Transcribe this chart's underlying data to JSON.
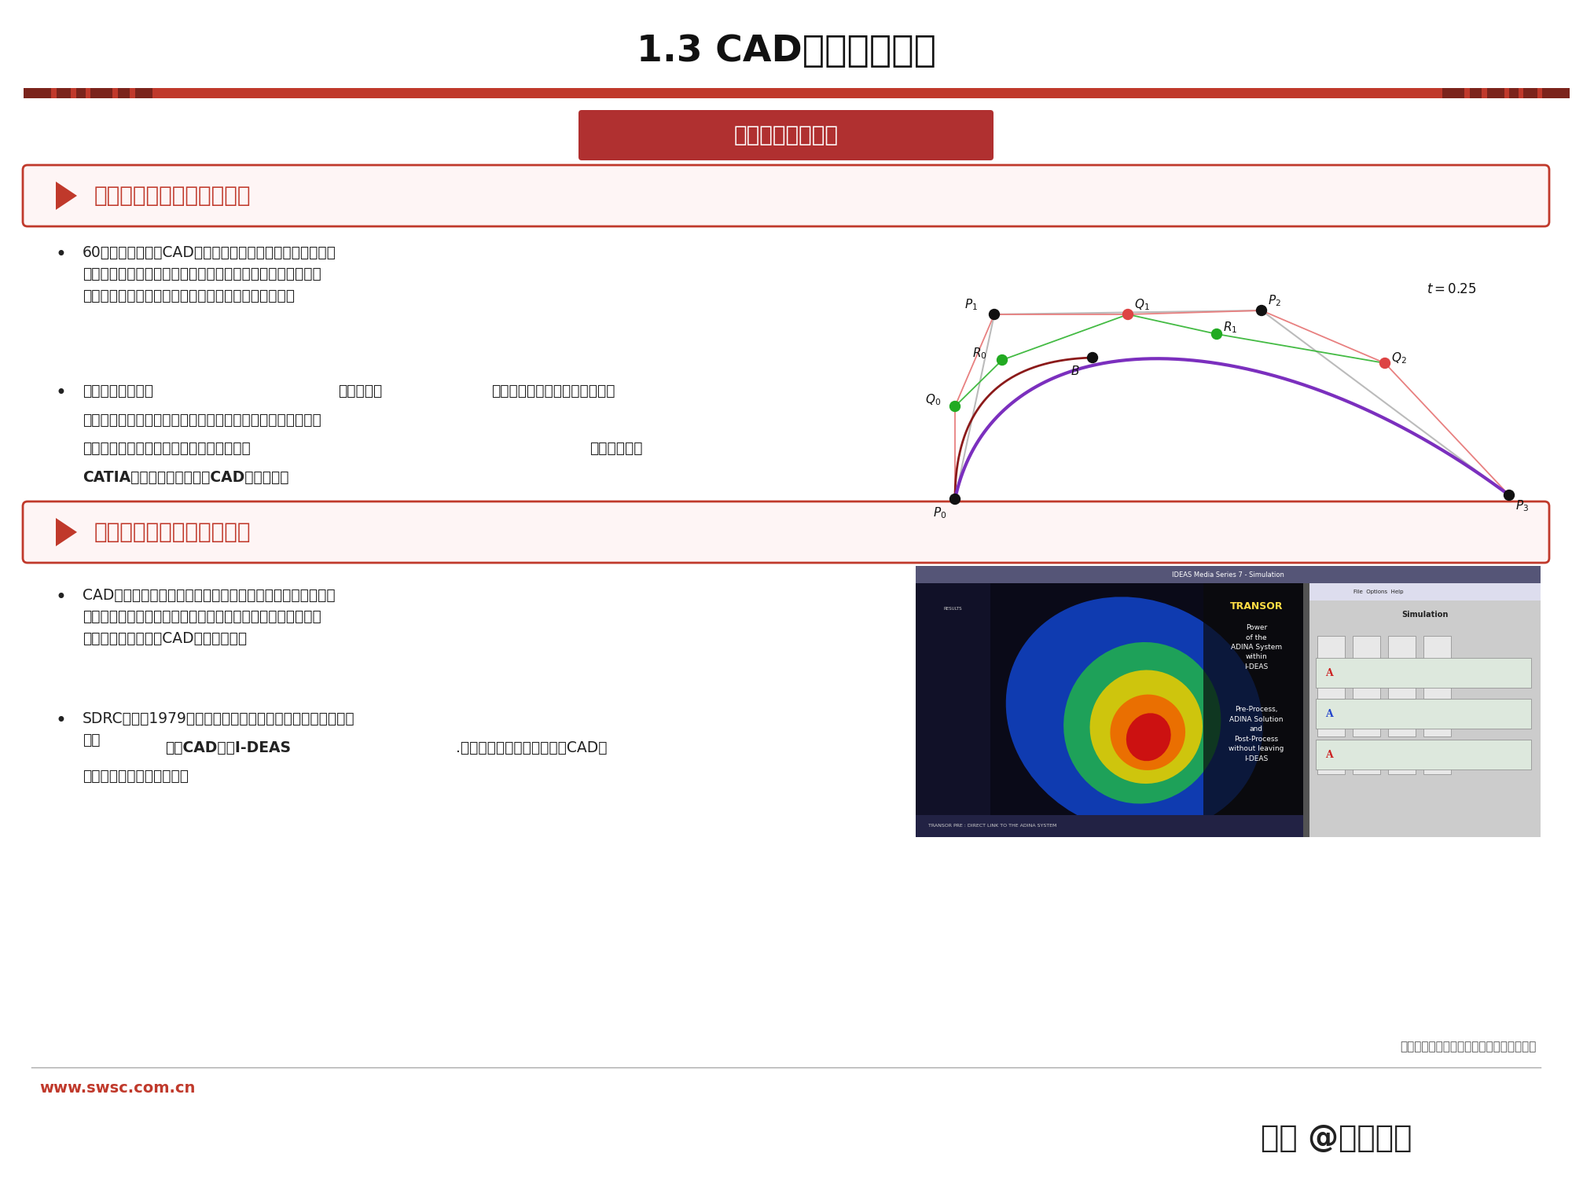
{
  "title": "1.3 CAD技术发展历程",
  "title_fontsize": 34,
  "bg_color": "#ffffff",
  "header_bar_color": "#c0392b",
  "header_bar_color2": "#7b241c",
  "center_label": "四大重大技术革命",
  "center_label_color": "#ffffff",
  "center_label_bg": "#b03030",
  "section1_title": "第一次技术革命：曲面造型",
  "section1_title_color": "#c0392b",
  "section1_border_color": "#c0392b",
  "section2_title": "第二次技术革命：实体造型",
  "section2_title_color": "#c0392b",
  "section2_border_color": "#c0392b",
  "s1_b1_normal": "60年代出现的三维CAD系统只是极为简单的线框式系统，只\n能表达基本的几何信息，经常发生设计完成后，制作出来的样\n品与设计者所想象的有很大差距甚至完全不同的情况。",
  "s1_b2_normal": "这时候法国人提出",
  "s1_b2_bold": "贝塞尔算法",
  "s1_b2_normal2": "，使得人们在用计算机处理曲线\n及曲面问题时变得可以操作，标志着计算机辅助设计技术从单\n纯模仿工程图纸的三视图模式中解放出来，",
  "s1_b2_bold2": "曲面造型系统\nCATIA为人类带来了第一次CAD技术革命。",
  "s2_b1": "CAD的表面模型技术只能表达形体的表面信息，难以准确表达\n零件的其它特性，而实体造型技术能够精确表达零件的全部属\n性，在理论上有助于CAD模型的表达。",
  "s2_b2_normal": "SDRC公司于1979年发布了世界上第一个完全基于实体造型技\n术的",
  "s2_b2_bold": "大型CAD软件I-DEAS",
  "s2_b2_normal2": ".实体造型技术的普及标志着CAD发\n展史上的第二次技术革命。",
  "footer_source": "数据来源：测量技术研究院，西南证券整理",
  "footer_website": "www.swsc.com.cn",
  "footer_watermark": "头条 @未来智库",
  "bottom_line_color": "#aaaaaa",
  "website_color": "#c0392b",
  "watermark_color": "#222222"
}
